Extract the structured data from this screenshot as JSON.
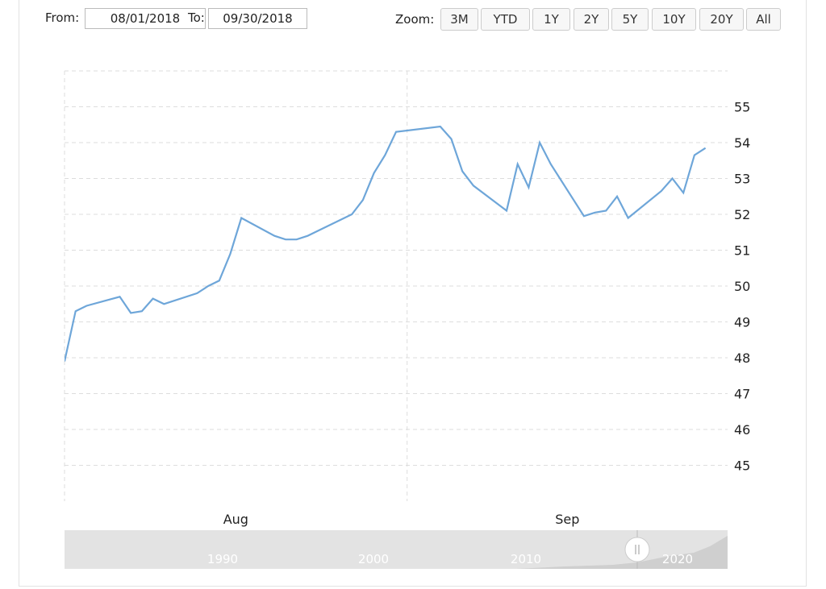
{
  "controls": {
    "from_label": "From:",
    "from_value": "08/01/2018",
    "to_label": "To:",
    "to_value": "09/30/2018",
    "zoom_label": "Zoom:",
    "zoom_buttons": [
      "3M",
      "YTD",
      "1Y",
      "2Y",
      "5Y",
      "10Y",
      "20Y",
      "All"
    ]
  },
  "chart_data": {
    "type": "line",
    "x": [
      "2018-08-01",
      "2018-08-02",
      "2018-08-03",
      "2018-08-06",
      "2018-08-07",
      "2018-08-08",
      "2018-08-09",
      "2018-08-10",
      "2018-08-13",
      "2018-08-14",
      "2018-08-15",
      "2018-08-16",
      "2018-08-17",
      "2018-08-20",
      "2018-08-21",
      "2018-08-22",
      "2018-08-23",
      "2018-08-24",
      "2018-08-27",
      "2018-08-28",
      "2018-08-29",
      "2018-08-30",
      "2018-08-31",
      "2018-09-04",
      "2018-09-05",
      "2018-09-06",
      "2018-09-07",
      "2018-09-10",
      "2018-09-11",
      "2018-09-12",
      "2018-09-13",
      "2018-09-14",
      "2018-09-17",
      "2018-09-18",
      "2018-09-19",
      "2018-09-20",
      "2018-09-21",
      "2018-09-24",
      "2018-09-25",
      "2018-09-26",
      "2018-09-27",
      "2018-09-28"
    ],
    "series": [
      {
        "color": "#6ea6d9",
        "values": [
          47.9,
          49.3,
          49.45,
          49.7,
          49.25,
          49.3,
          49.65,
          49.5,
          49.8,
          50.0,
          50.15,
          50.9,
          51.9,
          51.4,
          51.3,
          51.3,
          51.4,
          51.55,
          52.0,
          52.4,
          53.15,
          53.65,
          54.3,
          54.45,
          54.1,
          53.2,
          52.8,
          52.1,
          53.4,
          52.75,
          54.0,
          53.4,
          51.95,
          52.05,
          52.1,
          52.5,
          51.9,
          52.65,
          53.0,
          52.6,
          53.65,
          53.85
        ]
      }
    ],
    "xlim": [
      "2018-08-01",
      "2018-09-30"
    ],
    "xticks": [
      {
        "value": "2018-08-01",
        "label": "Aug"
      },
      {
        "value": "2018-09-01",
        "label": "Sep"
      }
    ],
    "ylim": [
      44,
      56
    ],
    "yticks": [
      45,
      46,
      47,
      48,
      49,
      50,
      51,
      52,
      53,
      54,
      55
    ],
    "grid": true
  },
  "navigator": {
    "labels": [
      "1990",
      "2000",
      "2010",
      "2020"
    ]
  }
}
